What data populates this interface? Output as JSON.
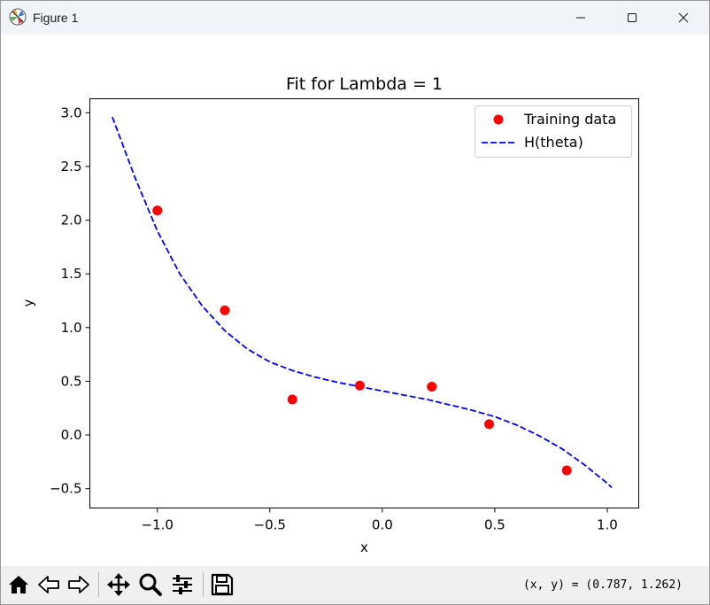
{
  "window": {
    "title": "Figure 1",
    "app_icon": "matplotlib-icon",
    "controls": [
      "minimize-icon",
      "maximize-icon",
      "close-icon"
    ]
  },
  "chart_data": {
    "type": "scatter",
    "title": "Fit for Lambda = 1",
    "xlabel": "x",
    "ylabel": "y",
    "xlim": [
      -1.3,
      1.14
    ],
    "ylim": [
      -0.68,
      3.13
    ],
    "xticks": [
      -1.0,
      -0.5,
      0.0,
      0.5,
      1.0
    ],
    "xtick_labels": [
      "−1.0",
      "−0.5",
      "0.0",
      "0.5",
      "1.0"
    ],
    "yticks": [
      -0.5,
      0.0,
      0.5,
      1.0,
      1.5,
      2.0,
      2.5,
      3.0
    ],
    "ytick_labels": [
      "−0.5",
      "0.0",
      "0.5",
      "1.0",
      "1.5",
      "2.0",
      "2.5",
      "3.0"
    ],
    "grid": false,
    "legend_position": "top-right",
    "series": [
      {
        "name": "Training data",
        "kind": "scatter",
        "color": "#ff0000",
        "points": [
          {
            "x": -1.0,
            "y": 2.09
          },
          {
            "x": -0.7,
            "y": 1.16
          },
          {
            "x": -0.4,
            "y": 0.33
          },
          {
            "x": -0.1,
            "y": 0.46
          },
          {
            "x": 0.22,
            "y": 0.45
          },
          {
            "x": 0.475,
            "y": 0.1
          },
          {
            "x": 0.82,
            "y": -0.33
          }
        ]
      },
      {
        "name": "H(theta)",
        "kind": "line",
        "style": "dashed",
        "color": "#0000ff",
        "points": [
          {
            "x": -1.2,
            "y": 2.96
          },
          {
            "x": -1.1,
            "y": 2.4
          },
          {
            "x": -1.0,
            "y": 1.9
          },
          {
            "x": -0.9,
            "y": 1.5
          },
          {
            "x": -0.8,
            "y": 1.2
          },
          {
            "x": -0.7,
            "y": 0.97
          },
          {
            "x": -0.6,
            "y": 0.8
          },
          {
            "x": -0.5,
            "y": 0.68
          },
          {
            "x": -0.4,
            "y": 0.6
          },
          {
            "x": -0.3,
            "y": 0.54
          },
          {
            "x": -0.2,
            "y": 0.49
          },
          {
            "x": -0.1,
            "y": 0.45
          },
          {
            "x": 0.0,
            "y": 0.41
          },
          {
            "x": 0.1,
            "y": 0.37
          },
          {
            "x": 0.2,
            "y": 0.33
          },
          {
            "x": 0.3,
            "y": 0.28
          },
          {
            "x": 0.4,
            "y": 0.23
          },
          {
            "x": 0.5,
            "y": 0.17
          },
          {
            "x": 0.6,
            "y": 0.09
          },
          {
            "x": 0.7,
            "y": -0.01
          },
          {
            "x": 0.8,
            "y": -0.13
          },
          {
            "x": 0.9,
            "y": -0.28
          },
          {
            "x": 1.0,
            "y": -0.45
          },
          {
            "x": 1.02,
            "y": -0.49
          }
        ]
      }
    ]
  },
  "toolbar": {
    "tools": [
      "home-icon",
      "back-icon",
      "forward-icon",
      "pan-icon",
      "zoom-icon",
      "configure-subplots-icon",
      "save-icon"
    ],
    "coordinates": "(x, y) = (0.787, 1.262)"
  }
}
